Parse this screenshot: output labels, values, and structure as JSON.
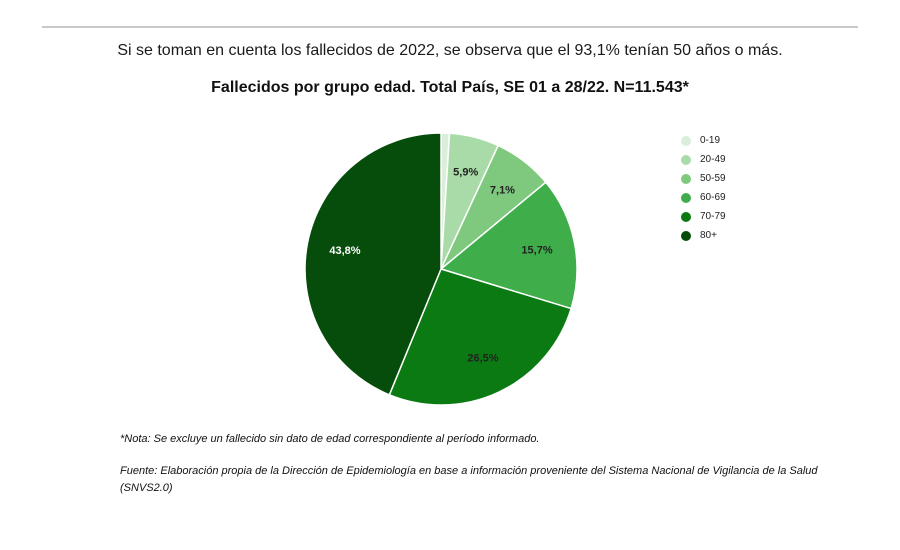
{
  "header": {
    "intro_text": "Si se toman en cuenta los fallecidos de 2022, se observa que el 93,1% tenían 50 años o más."
  },
  "chart_data": {
    "type": "pie",
    "title": "Fallecidos por grupo edad. Total País, SE 01 a 28/22. N=11.543*",
    "categories": [
      "0-19",
      "20-49",
      "50-59",
      "60-69",
      "70-79",
      "80+"
    ],
    "values": [
      1.0,
      5.9,
      7.1,
      15.7,
      26.5,
      43.8
    ],
    "data_labels": [
      "",
      "5,9%",
      "7,1%",
      "15,7%",
      "26,5%",
      "43,8%"
    ],
    "colors": [
      "#d9efd9",
      "#a8dba8",
      "#7ec97e",
      "#3fae4a",
      "#0b7a12",
      "#064d0b"
    ],
    "label_colors": [
      "#222222",
      "#222222",
      "#222222",
      "#222222",
      "#222222",
      "#ffffff"
    ],
    "start_angle_deg": 0,
    "direction": "clockwise",
    "legend_position": "right"
  },
  "footer": {
    "note": "*Nota: Se excluye un fallecido sin dato de edad correspondiente al período informado.",
    "source": "Fuente: Elaboración propia de la Dirección de Epidemiología en base a información proveniente del Sistema Nacional de Vigilancia de la Salud (SNVS2.0)"
  }
}
